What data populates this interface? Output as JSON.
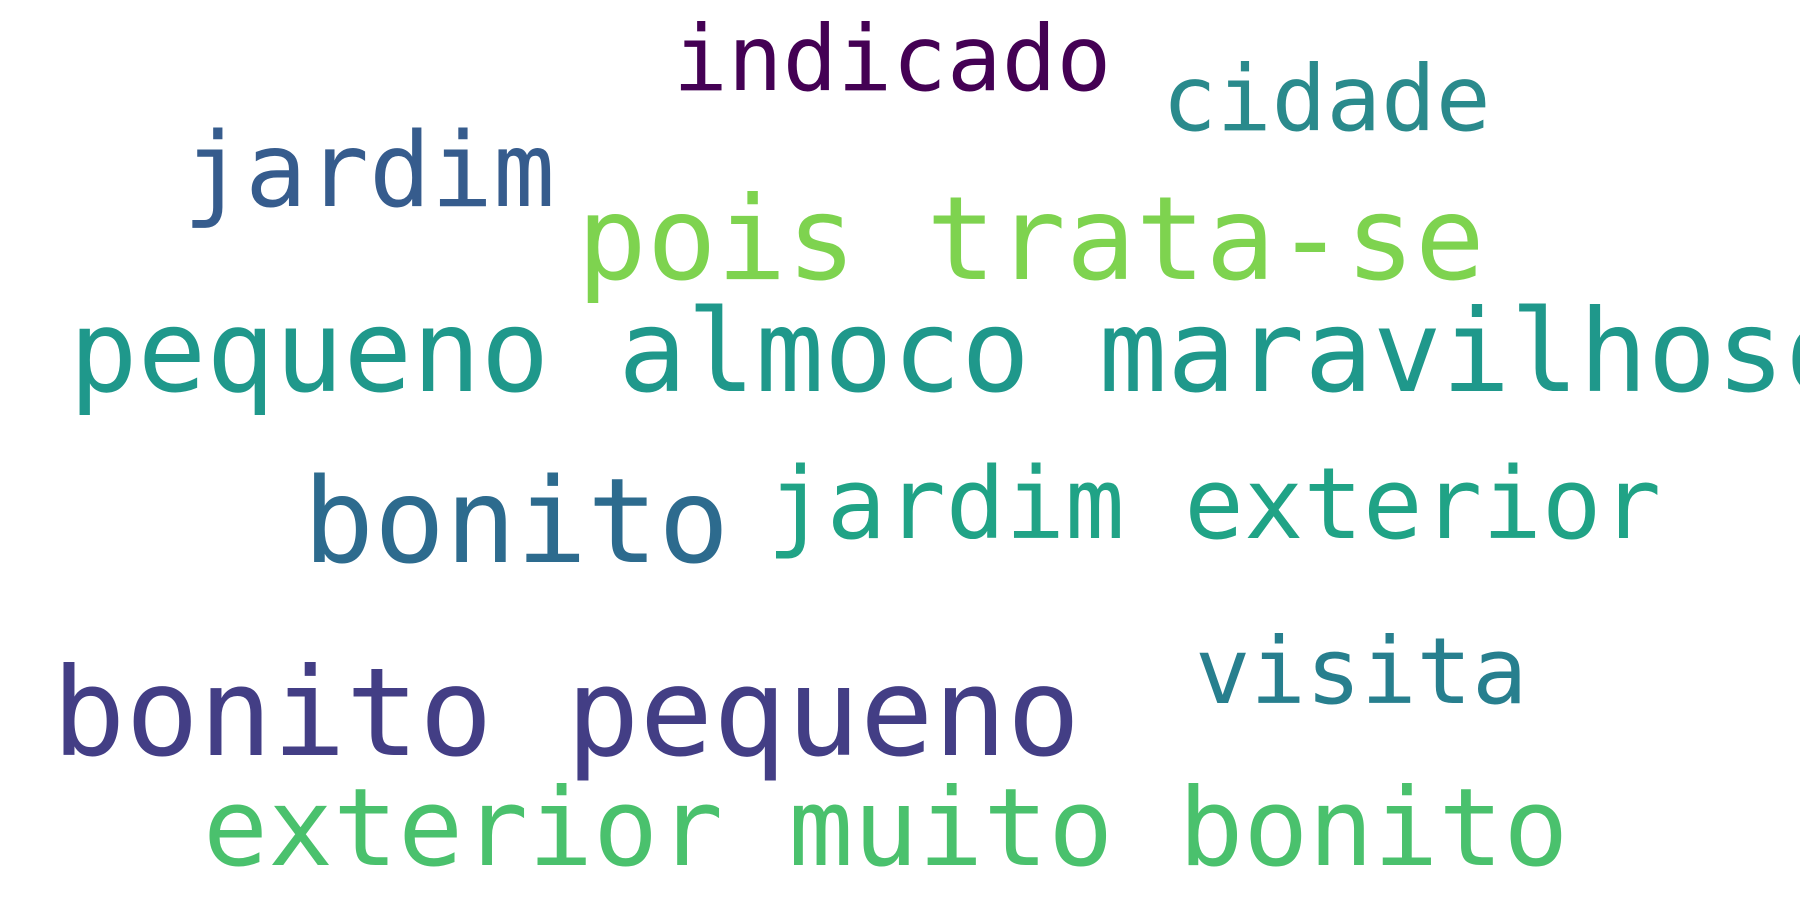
{
  "words": [
    {
      "text": "indicado",
      "color": "#440154"
    },
    {
      "text": "cidade",
      "color": "#2a8a8c"
    },
    {
      "text": "jardim",
      "color": "#365c8d"
    },
    {
      "text": "pois trata-se",
      "color": "#7ed34f"
    },
    {
      "text": "pequeno almoco maravilhoso",
      "color": "#1f988b"
    },
    {
      "text": "bonito",
      "color": "#2d6b8e"
    },
    {
      "text": "jardim exterior",
      "color": "#20a386"
    },
    {
      "text": "visita",
      "color": "#277f8e"
    },
    {
      "text": "bonito pequeno",
      "color": "#433e85"
    },
    {
      "text": "exterior muito bonito",
      "color": "#4ac16d"
    }
  ],
  "background": "#ffffff"
}
